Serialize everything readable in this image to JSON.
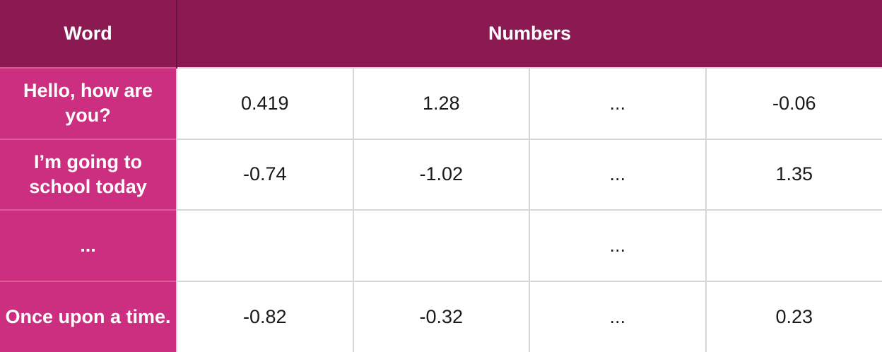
{
  "table": {
    "headers": {
      "word": "Word",
      "numbers": "Numbers"
    },
    "rows": [
      {
        "word": "Hello, how are you?",
        "values": [
          "0.419",
          "1.28",
          "...",
          "-0.06"
        ]
      },
      {
        "word": "I’m going to school today",
        "values": [
          "-0.74",
          "-1.02",
          "...",
          "1.35"
        ]
      },
      {
        "word": "...",
        "values": [
          "",
          "",
          "...",
          ""
        ]
      },
      {
        "word": "Once upon a time.",
        "values": [
          "-0.82",
          "-0.32",
          "...",
          "0.23"
        ]
      }
    ]
  },
  "colors": {
    "header_bg": "#8b1a52",
    "label_bg": "#cc2f7f",
    "text_light": "#ffffff"
  }
}
